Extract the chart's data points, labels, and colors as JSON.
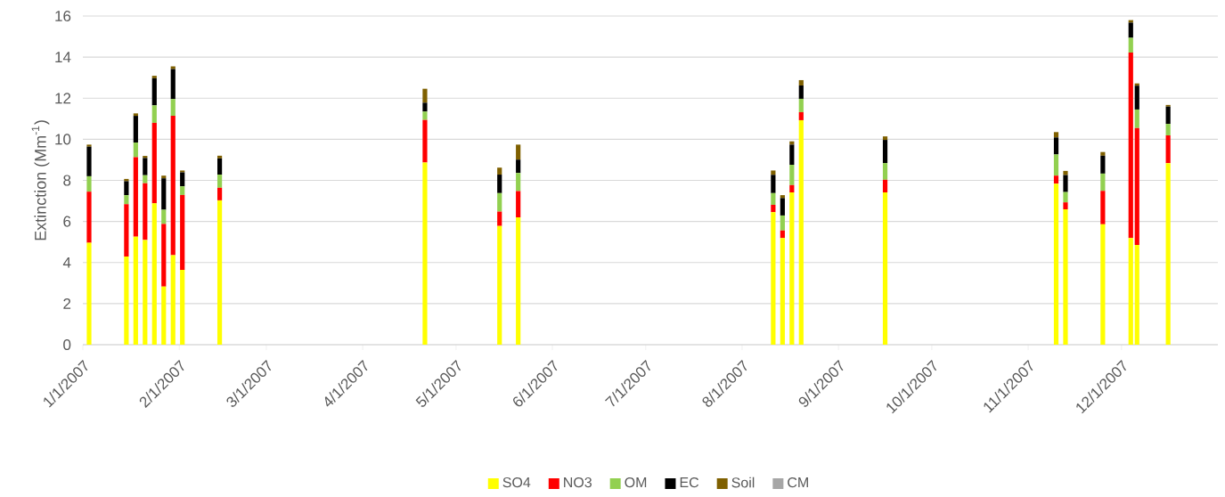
{
  "chart_data": {
    "type": "bar",
    "stacked": true,
    "ylabel": "Extinction  (Mm$^{-1}$)",
    "x": [
      "2007-01-03",
      "2007-01-15",
      "2007-01-18",
      "2007-01-21",
      "2007-01-24",
      "2007-01-27",
      "2007-01-30",
      "2007-02-02",
      "2007-02-14",
      "2007-04-21",
      "2007-05-15",
      "2007-05-21",
      "2007-08-11",
      "2007-08-14",
      "2007-08-17",
      "2007-08-20",
      "2007-09-16",
      "2007-11-10",
      "2007-11-13",
      "2007-11-25",
      "2007-12-04",
      "2007-12-06",
      "2007-12-16"
    ],
    "series": [
      {
        "name": "SO4",
        "color": "#ffff00",
        "values": [
          4.96,
          4.29,
          5.26,
          5.1,
          6.88,
          2.83,
          4.36,
          3.64,
          7.03,
          8.87,
          5.78,
          6.2,
          6.45,
          5.19,
          7.41,
          10.93,
          7.41,
          7.84,
          6.59,
          5.86,
          5.19,
          4.86,
          8.84
        ]
      },
      {
        "name": "NO3",
        "color": "#ff0000",
        "values": [
          2.49,
          2.55,
          3.87,
          2.76,
          3.92,
          3.05,
          6.78,
          3.65,
          0.61,
          2.07,
          0.7,
          1.28,
          0.36,
          0.37,
          0.36,
          0.39,
          0.62,
          0.39,
          0.34,
          1.63,
          9.03,
          5.69,
          1.35
        ]
      },
      {
        "name": "OM",
        "color": "#92d050",
        "values": [
          0.75,
          0.44,
          0.71,
          0.39,
          0.85,
          0.69,
          0.82,
          0.42,
          0.64,
          0.41,
          0.9,
          0.88,
          0.57,
          0.73,
          0.99,
          0.65,
          0.81,
          1.03,
          0.5,
          0.84,
          0.72,
          0.9,
          0.56
        ]
      },
      {
        "name": "EC",
        "color": "#000000",
        "values": [
          1.44,
          0.68,
          1.3,
          0.84,
          1.32,
          1.53,
          1.46,
          0.68,
          0.79,
          0.43,
          0.9,
          0.65,
          0.89,
          0.85,
          0.98,
          0.65,
          1.13,
          0.83,
          0.83,
          0.87,
          0.74,
          1.16,
          0.84
        ]
      },
      {
        "name": "Soil",
        "color": "#7f6000",
        "values": [
          0.1,
          0.11,
          0.12,
          0.1,
          0.12,
          0.13,
          0.13,
          0.09,
          0.13,
          0.68,
          0.34,
          0.73,
          0.21,
          0.14,
          0.16,
          0.26,
          0.17,
          0.26,
          0.2,
          0.18,
          0.12,
          0.11,
          0.08
        ]
      },
      {
        "name": "CM",
        "color": "#a6a6a6",
        "values": [
          0,
          0,
          0,
          0,
          0,
          0,
          0,
          0,
          0,
          0,
          0,
          0,
          0,
          0,
          0,
          0,
          0,
          0,
          0,
          0,
          0,
          0,
          0
        ]
      }
    ],
    "xlim": [
      "2007-01-01",
      "2008-01-01"
    ],
    "xticks": [
      {
        "value": "2007-01-01",
        "label": "1/1/2007"
      },
      {
        "value": "2007-02-01",
        "label": "2/1/2007"
      },
      {
        "value": "2007-03-01",
        "label": "3/1/2007"
      },
      {
        "value": "2007-04-01",
        "label": "4/1/2007"
      },
      {
        "value": "2007-05-01",
        "label": "5/1/2007"
      },
      {
        "value": "2007-06-01",
        "label": "6/1/2007"
      },
      {
        "value": "2007-07-01",
        "label": "7/1/2007"
      },
      {
        "value": "2007-08-01",
        "label": "8/1/2007"
      },
      {
        "value": "2007-09-01",
        "label": "9/1/2007"
      },
      {
        "value": "2007-10-01",
        "label": "10/1/2007"
      },
      {
        "value": "2007-11-01",
        "label": "11/1/2007"
      },
      {
        "value": "2007-12-01",
        "label": "12/1/2007"
      }
    ],
    "ylim": [
      0,
      16
    ],
    "yticks": [
      0,
      2,
      4,
      6,
      8,
      10,
      12,
      14,
      16
    ],
    "grid": "y",
    "legend": "bottom"
  }
}
